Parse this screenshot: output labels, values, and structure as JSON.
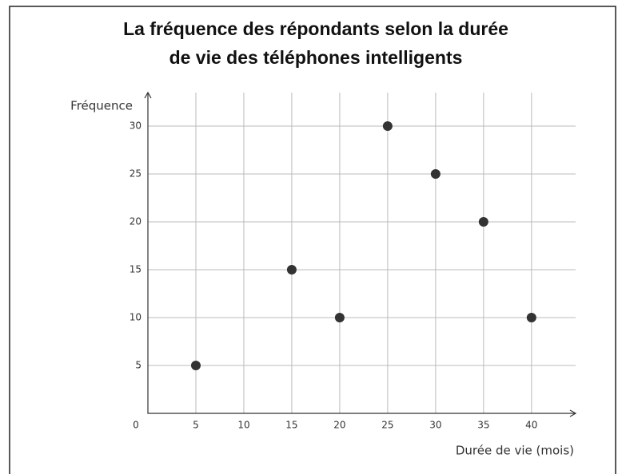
{
  "chart_data": {
    "type": "scatter",
    "title": [
      "La fréquence des répondants selon la durée",
      "de vie des téléphones intelligents"
    ],
    "x_label": "Durée de vie (mois)",
    "y_label": "Fréquence",
    "x": [
      5,
      15,
      20,
      25,
      30,
      35,
      40
    ],
    "values": [
      5,
      15,
      10,
      30,
      25,
      20,
      10
    ],
    "color": "#333333",
    "xlim": [
      0,
      44.6
    ],
    "ylim": [
      0,
      33.5
    ],
    "xticks": [
      0,
      5,
      10,
      15,
      20,
      25,
      30,
      35,
      40
    ],
    "yticks": [
      5,
      10,
      15,
      20,
      25,
      30
    ],
    "grid": true
  }
}
